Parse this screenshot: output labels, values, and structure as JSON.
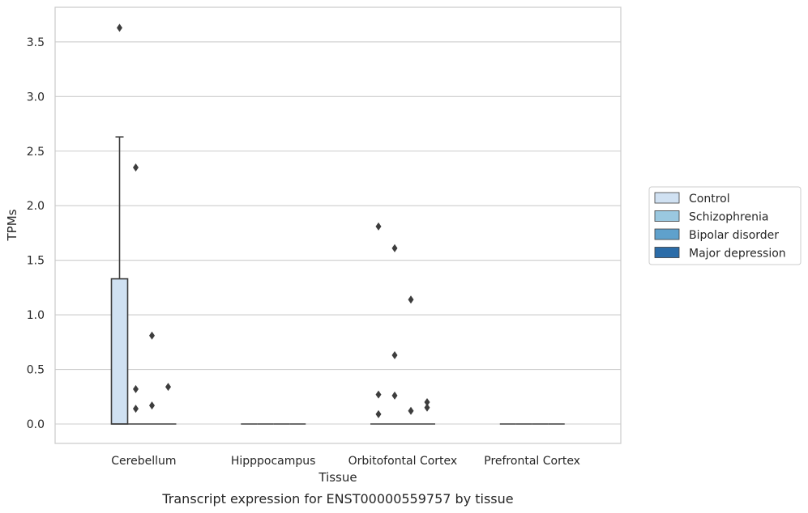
{
  "chart_data": {
    "type": "box",
    "xlabel": "Tissue",
    "ylabel": "TPMs",
    "caption": "Transcript expression for ENST00000559757 by tissue",
    "ylim": [
      -0.17,
      3.78
    ],
    "yticks": [
      "0.0",
      "0.5",
      "1.0",
      "1.5",
      "2.0",
      "2.5",
      "3.0",
      "3.5"
    ],
    "ytick_values": [
      0.0,
      0.5,
      1.0,
      1.5,
      2.0,
      2.5,
      3.0,
      3.5
    ],
    "grid": true,
    "legend_position": "right",
    "categories": [
      "Cerebellum",
      "Hipppocampus",
      "Orbitofontal Cortex",
      "Prefrontal Cortex"
    ],
    "series": [
      {
        "name": "Control",
        "color": "#d0e1f2"
      },
      {
        "name": "Schizophrenia",
        "color": "#9ac8e0"
      },
      {
        "name": "Bipolar disorder",
        "color": "#5fa1cc"
      },
      {
        "name": "Major depression",
        "color": "#2b6ca8"
      }
    ],
    "boxes": [
      {
        "category": 0,
        "series": 0,
        "q1": 0,
        "median": 0,
        "q3": 1.33,
        "whisker_low": 0,
        "whisker_high": 2.63,
        "outliers": [
          3.63
        ]
      },
      {
        "category": 0,
        "series": 1,
        "q1": 0,
        "median": 0,
        "q3": 0,
        "whisker_low": 0,
        "whisker_high": 0,
        "outliers": [
          0.14,
          0.32,
          2.35
        ]
      },
      {
        "category": 0,
        "series": 2,
        "q1": 0,
        "median": 0,
        "q3": 0,
        "whisker_low": 0,
        "whisker_high": 0,
        "outliers": [
          0.17,
          0.81
        ]
      },
      {
        "category": 0,
        "series": 3,
        "q1": 0,
        "median": 0,
        "q3": 0,
        "whisker_low": 0,
        "whisker_high": 0,
        "outliers": [
          0.34
        ]
      },
      {
        "category": 1,
        "series": 0,
        "q1": 0,
        "median": 0,
        "q3": 0,
        "whisker_low": 0,
        "whisker_high": 0,
        "outliers": []
      },
      {
        "category": 1,
        "series": 1,
        "q1": 0,
        "median": 0,
        "q3": 0,
        "whisker_low": 0,
        "whisker_high": 0,
        "outliers": []
      },
      {
        "category": 1,
        "series": 2,
        "q1": 0,
        "median": 0,
        "q3": 0,
        "whisker_low": 0,
        "whisker_high": 0,
        "outliers": []
      },
      {
        "category": 1,
        "series": 3,
        "q1": 0,
        "median": 0,
        "q3": 0,
        "whisker_low": 0,
        "whisker_high": 0,
        "outliers": []
      },
      {
        "category": 2,
        "series": 0,
        "q1": 0,
        "median": 0,
        "q3": 0,
        "whisker_low": 0,
        "whisker_high": 0,
        "outliers": [
          0.09,
          0.27,
          1.81
        ]
      },
      {
        "category": 2,
        "series": 1,
        "q1": 0,
        "median": 0,
        "q3": 0,
        "whisker_low": 0,
        "whisker_high": 0,
        "outliers": [
          0.26,
          0.63,
          1.61
        ]
      },
      {
        "category": 2,
        "series": 2,
        "q1": 0,
        "median": 0,
        "q3": 0,
        "whisker_low": 0,
        "whisker_high": 0,
        "outliers": [
          0.12,
          1.14
        ]
      },
      {
        "category": 2,
        "series": 3,
        "q1": 0,
        "median": 0,
        "q3": 0,
        "whisker_low": 0,
        "whisker_high": 0,
        "outliers": [
          0.15,
          0.2
        ]
      },
      {
        "category": 3,
        "series": 0,
        "q1": 0,
        "median": 0,
        "q3": 0,
        "whisker_low": 0,
        "whisker_high": 0,
        "outliers": []
      },
      {
        "category": 3,
        "series": 1,
        "q1": 0,
        "median": 0,
        "q3": 0,
        "whisker_low": 0,
        "whisker_high": 0,
        "outliers": []
      },
      {
        "category": 3,
        "series": 2,
        "q1": 0,
        "median": 0,
        "q3": 0,
        "whisker_low": 0,
        "whisker_high": 0,
        "outliers": []
      },
      {
        "category": 3,
        "series": 3,
        "q1": 0,
        "median": 0,
        "q3": 0,
        "whisker_low": 0,
        "whisker_high": 0,
        "outliers": []
      }
    ]
  }
}
